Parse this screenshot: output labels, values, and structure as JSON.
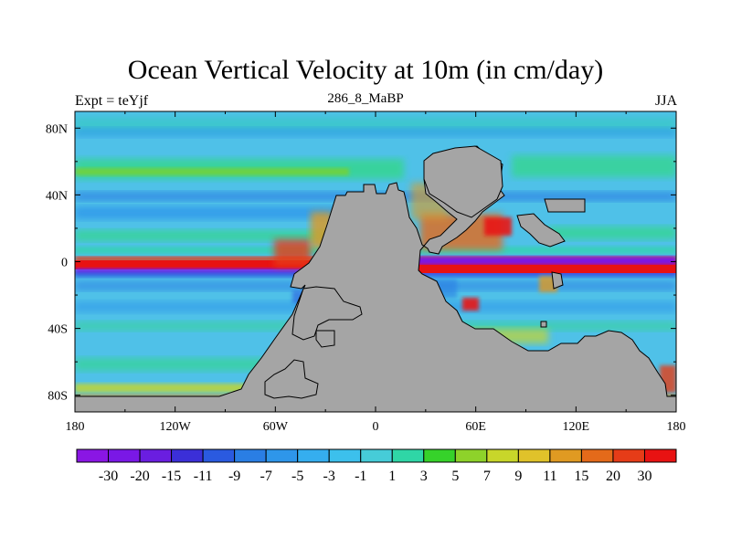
{
  "title": "Ocean Vertical Velocity at 10m (in cm/day)",
  "subtitle_left": "Expt = teYjf",
  "subtitle_center": "286_8_MaBP",
  "subtitle_right": "JJA",
  "map": {
    "lon_range": [
      -180,
      180
    ],
    "lat_range": [
      -90,
      90
    ],
    "x_ticks": [
      "180",
      "120W",
      "60W",
      "0",
      "60E",
      "120E",
      "180"
    ],
    "y_ticks": [
      "80N",
      "40N",
      "0",
      "40S",
      "80S"
    ],
    "land_color": "#a5a5a5",
    "ocean_background": "#4fc1e8"
  },
  "colorbar": {
    "labels": [
      "-30",
      "-20",
      "-15",
      "-11",
      "-9",
      "-7",
      "-5",
      "-3",
      "-1",
      "1",
      "3",
      "5",
      "7",
      "9",
      "11",
      "15",
      "20",
      "30"
    ],
    "colors": [
      "#8a16e4",
      "#7a18e6",
      "#6a1ee0",
      "#3b2fd8",
      "#2a5ae0",
      "#2a7ee4",
      "#2e96ea",
      "#35aeef",
      "#3cc0ec",
      "#46ccd8",
      "#2fd6a6",
      "#36d22a",
      "#8ed22a",
      "#c8d62a",
      "#e0c22a",
      "#e09a22",
      "#e46a1a",
      "#e63c18",
      "#e81212"
    ]
  }
}
